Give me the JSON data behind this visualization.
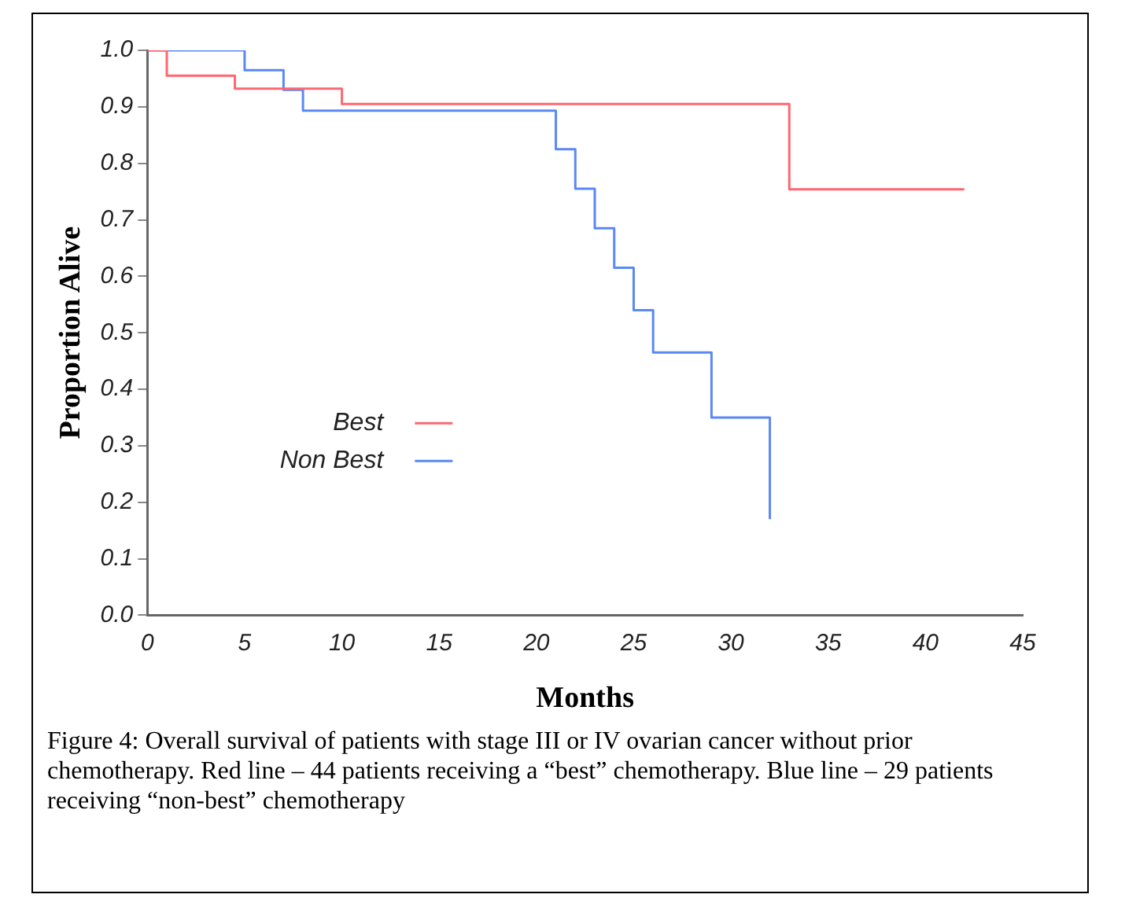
{
  "chart_data": {
    "type": "step",
    "xlabel": "Months",
    "ylabel": "Proportion Alive",
    "series": [
      {
        "name": "Best",
        "color": "#ff6670",
        "x": [
          0,
          1,
          4.5,
          10,
          33,
          42
        ],
        "values": [
          1.0,
          0.955,
          0.932,
          0.905,
          0.754,
          0.754
        ]
      },
      {
        "name": "Non Best",
        "color": "#5a88f5",
        "x": [
          0,
          5,
          7,
          8,
          21,
          22,
          23,
          24,
          25,
          26,
          29,
          32
        ],
        "values": [
          1.0,
          0.965,
          0.93,
          0.893,
          0.825,
          0.755,
          0.685,
          0.615,
          0.54,
          0.465,
          0.35,
          0.17
        ]
      }
    ],
    "xlim": [
      0,
      45
    ],
    "xticks": [
      0,
      5,
      10,
      15,
      20,
      25,
      30,
      35,
      40,
      45
    ],
    "ylim": [
      0,
      1
    ],
    "yticks": [
      {
        "value": 0,
        "label": "0.0"
      },
      0.1,
      0.2,
      0.3,
      0.4,
      0.5,
      0.6,
      0.7,
      0.8,
      0.9,
      {
        "value": 1,
        "label": "1.0"
      }
    ],
    "grid": false,
    "legend": "center left",
    "annotations": [
      "Figure 4: Overall survival of patients with stage III or IV ovarian cancer without prior chemotherapy. Red line – 44 patients receiving a “best” chemotherapy.  Blue line – 29 patients receiving “non-best” chemotherapy"
    ]
  }
}
